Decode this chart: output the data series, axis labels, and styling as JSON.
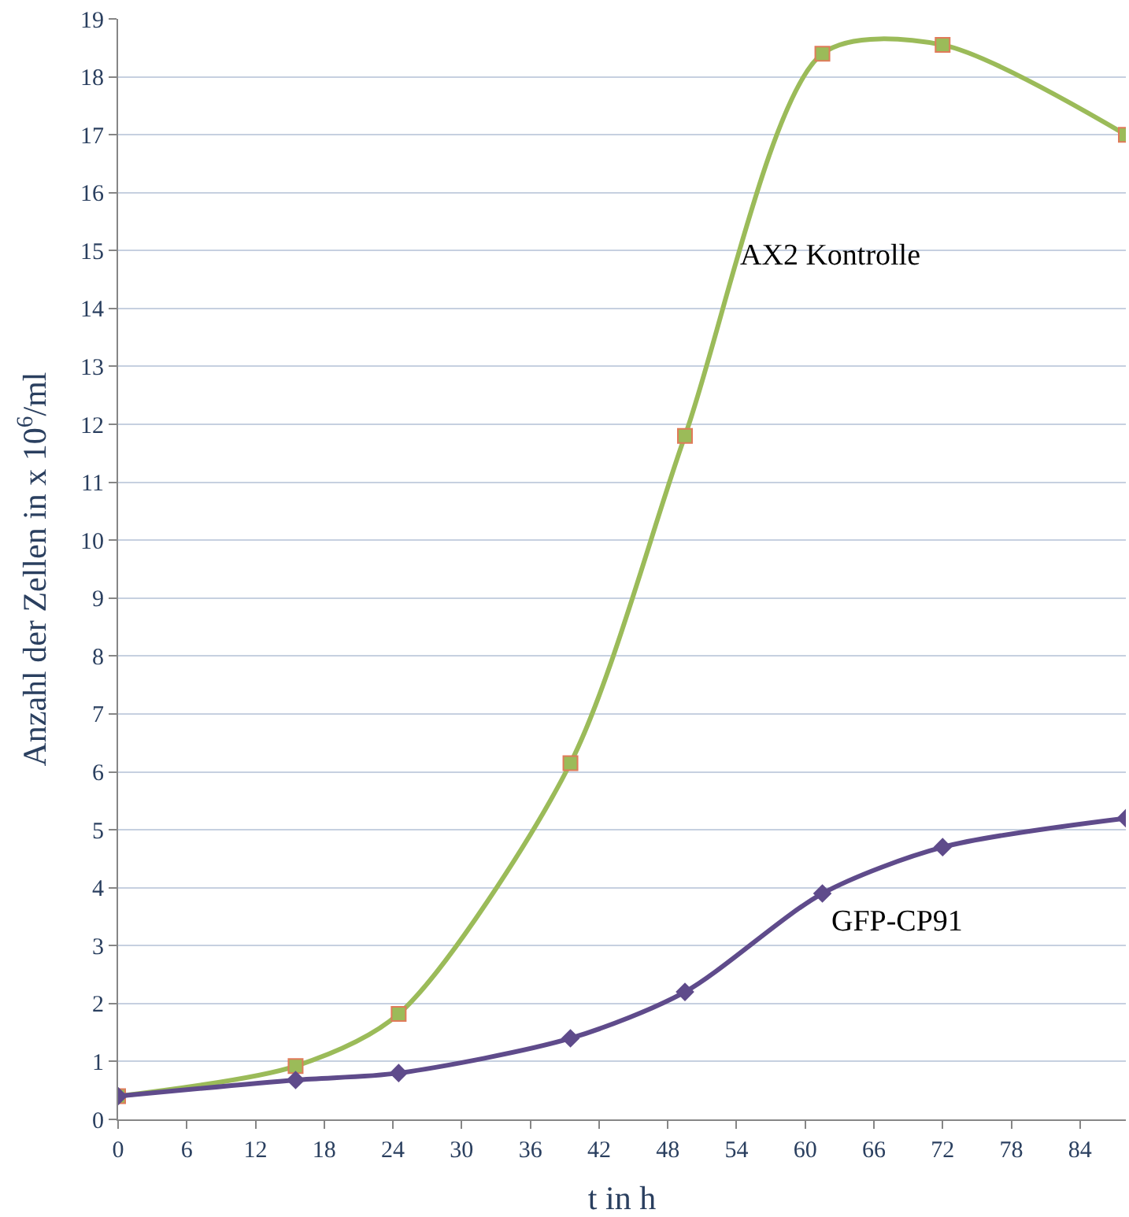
{
  "chart_data": {
    "type": "line",
    "xlabel": "t in h",
    "ylabel": "Anzahl der Zellen in x 10$^{6}$/ml",
    "xlim": [
      0,
      88
    ],
    "xticks": [
      0,
      6,
      12,
      18,
      24,
      30,
      36,
      42,
      48,
      54,
      60,
      66,
      72,
      78,
      84
    ],
    "ylim": [
      0,
      19
    ],
    "yticks": [
      0,
      1,
      2,
      3,
      4,
      5,
      6,
      7,
      8,
      9,
      10,
      11,
      12,
      13,
      14,
      15,
      16,
      17,
      18,
      19
    ],
    "grid": "y",
    "legend": false,
    "line_style": "solid",
    "series": [
      {
        "name": "AX2 Kontrolle",
        "color": "#9bbb59",
        "marker": "square",
        "x": [
          0,
          15.5,
          24.5,
          39.5,
          49.5,
          61.5,
          72,
          88
        ],
        "values": [
          0.4,
          0.92,
          1.82,
          6.15,
          11.8,
          18.4,
          18.55,
          17.0
        ]
      },
      {
        "name": "GFP-CP91",
        "color": "#5f4b8b",
        "marker": "diamond",
        "x": [
          0,
          15.5,
          24.5,
          39.5,
          49.5,
          61.5,
          72,
          88
        ],
        "values": [
          0.4,
          0.68,
          0.8,
          1.4,
          2.2,
          3.9,
          4.7,
          5.2
        ]
      }
    ]
  }
}
